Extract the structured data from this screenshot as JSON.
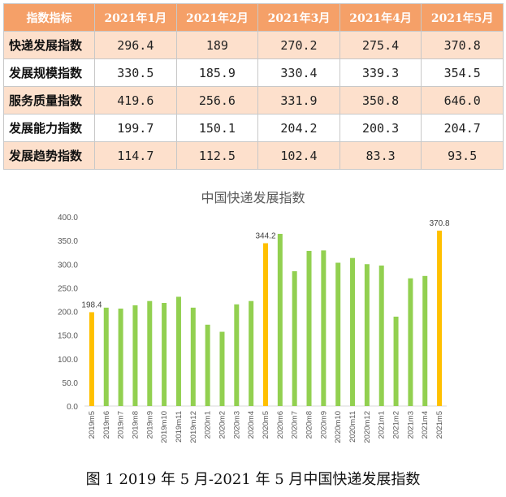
{
  "table": {
    "columns": [
      "指数指标",
      "2021年1月",
      "2021年2月",
      "2021年3月",
      "2021年4月",
      "2021年5月"
    ],
    "rows": [
      {
        "label": "快递发展指数",
        "values": [
          "296.4",
          "189",
          "270.2",
          "275.4",
          "370.8"
        ]
      },
      {
        "label": "发展规模指数",
        "values": [
          "330.5",
          "185.9",
          "330.4",
          "339.3",
          "354.5"
        ]
      },
      {
        "label": "服务质量指数",
        "values": [
          "419.6",
          "256.6",
          "331.9",
          "350.8",
          "646.0"
        ]
      },
      {
        "label": "发展能力指数",
        "values": [
          "199.7",
          "150.1",
          "204.2",
          "200.3",
          "204.7"
        ]
      },
      {
        "label": "发展趋势指数",
        "values": [
          "114.7",
          "112.5",
          "102.4",
          "83.3",
          "93.5"
        ]
      }
    ]
  },
  "chart_data": {
    "type": "bar",
    "title": "中国快递发展指数",
    "categories": [
      "2019m5",
      "2019m6",
      "2019m7",
      "2019m8",
      "2019m9",
      "2019m10",
      "2019m11",
      "2019m12",
      "2020m1",
      "2020m2",
      "2020m3",
      "2020m4",
      "2020m5",
      "2020m6",
      "2020m7",
      "2020m8",
      "2020m9",
      "2020m10",
      "2020m11",
      "2020m12",
      "2021m1",
      "2021m2",
      "2021m3",
      "2021m4",
      "2021m5"
    ],
    "values": [
      198.4,
      208,
      206,
      213,
      222,
      218,
      231,
      208,
      172,
      157,
      215,
      222,
      344.2,
      364,
      285,
      328,
      329,
      303,
      313,
      300,
      297,
      189,
      270,
      275,
      370.8
    ],
    "highlight_indices": [
      0,
      12,
      24
    ],
    "data_labels": {
      "0": "198.4",
      "12": "344.2",
      "24": "370.8"
    },
    "ylim": [
      0,
      400
    ],
    "yticks": [
      "0.0",
      "50.0",
      "100.0",
      "150.0",
      "200.0",
      "250.0",
      "300.0",
      "350.0",
      "400.0"
    ],
    "colors": {
      "normal": "#92d050",
      "highlight": "#ffc000",
      "axis_text": "#595959",
      "axis_line": "#d9d9d9"
    },
    "grid": false
  },
  "caption": "图 1  2019 年 5 月-2021 年 5 月中国快递发展指数"
}
